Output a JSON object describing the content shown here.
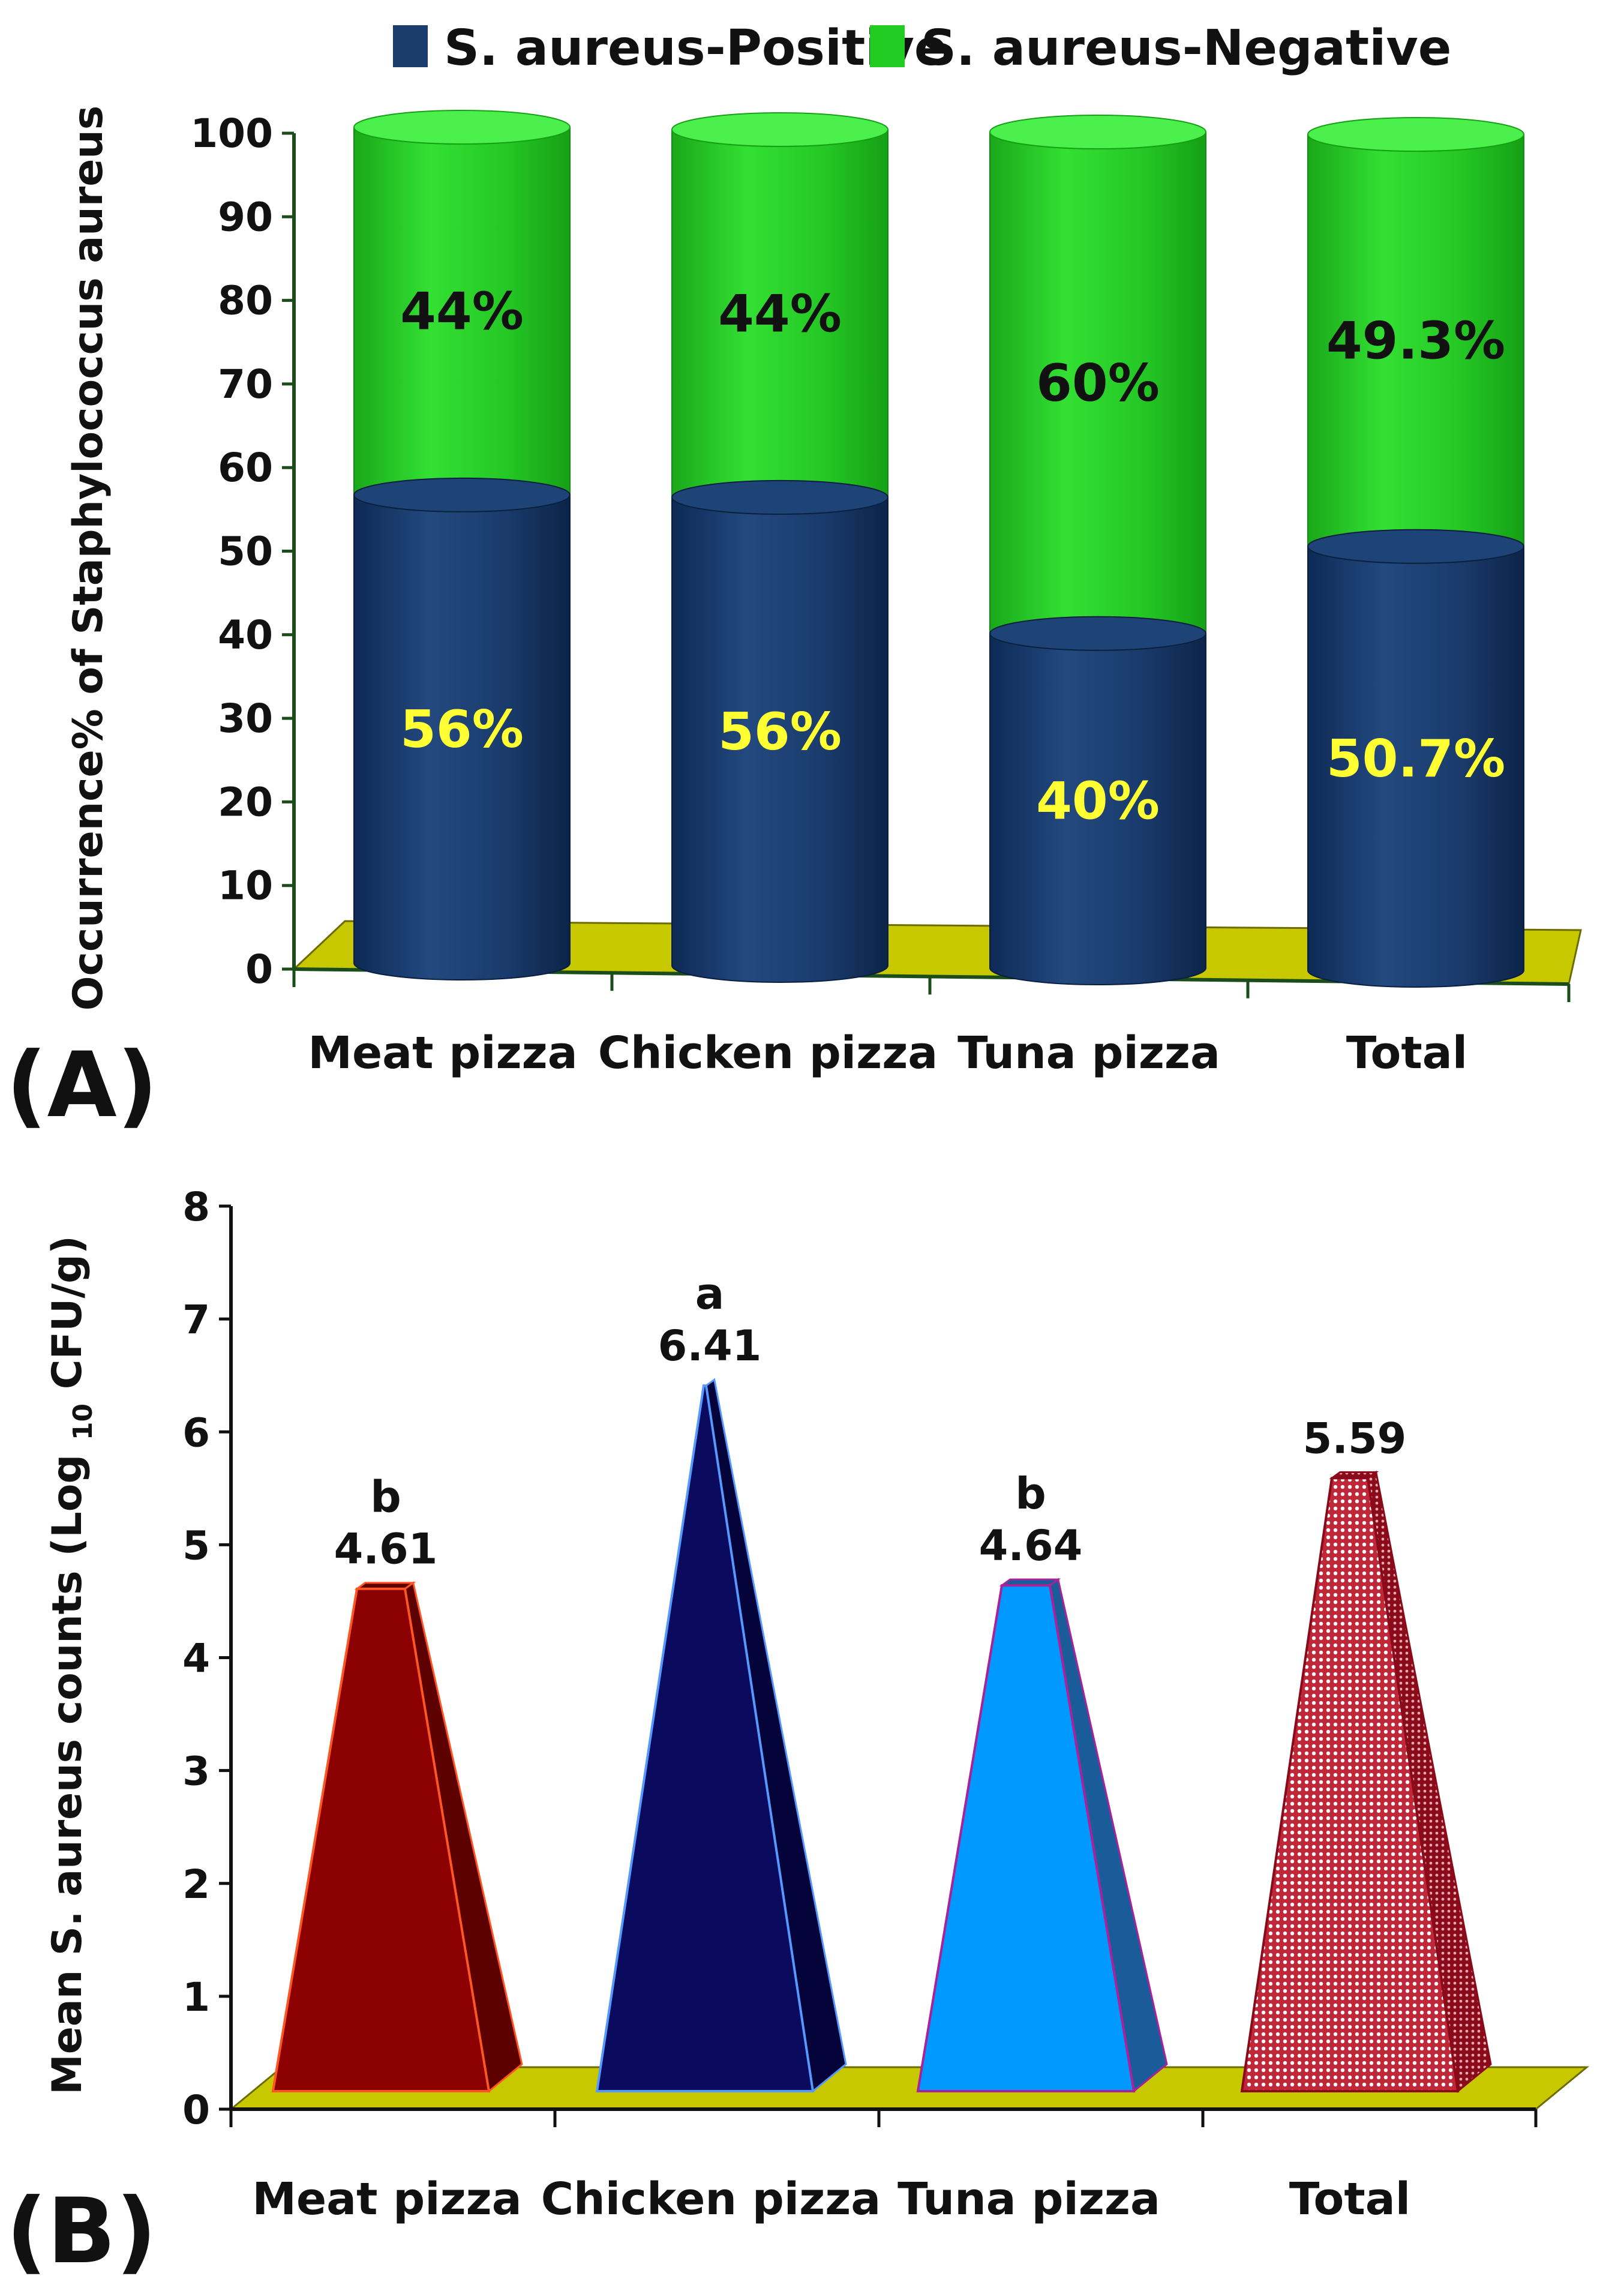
{
  "chart_data": [
    {
      "panel": "(A)",
      "type": "bar",
      "stacked": true,
      "style": "3d-cylinder",
      "ylabel": "Occurrence% of Staphylococcus aureus",
      "xlabel": "",
      "ylim": [
        0,
        100
      ],
      "yticks": [
        0,
        10,
        20,
        30,
        40,
        50,
        60,
        70,
        80,
        90,
        100
      ],
      "categories": [
        "Meat pizza",
        "Chicken pizza",
        "Tuna pizza",
        "Total"
      ],
      "legend_position": "top",
      "series": [
        {
          "name": "S. aureus-Positive",
          "color": "#1b3d6e",
          "values": [
            56,
            56,
            40,
            50.7
          ],
          "labels": [
            "56%",
            "56%",
            "40%",
            "50.7%"
          ]
        },
        {
          "name": "S. aureus-Negative",
          "color": "#22cc22",
          "values": [
            44,
            44,
            60,
            49.3
          ],
          "labels": [
            "44%",
            "44%",
            "60%",
            "49.3%"
          ]
        }
      ]
    },
    {
      "panel": "(B)",
      "type": "bar",
      "style": "3d-pyramid",
      "ylabel": "Mean S. aureus counts (Log",
      "ylabel_subscript": "10",
      "ylabel_suffix": " CFU/g)",
      "xlabel": "",
      "ylim": [
        0,
        8
      ],
      "yticks": [
        0,
        1,
        2,
        3,
        4,
        5,
        6,
        7,
        8
      ],
      "categories": [
        "Meat pizza",
        "Chicken pizza",
        "Tuna pizza",
        "Total"
      ],
      "values": [
        4.61,
        6.41,
        4.64,
        5.59
      ],
      "value_labels": [
        "4.61",
        "6.41",
        "4.64",
        "5.59"
      ],
      "significance": [
        "b",
        "a",
        "b",
        ""
      ],
      "colors": [
        "#8b0000",
        "#0a0a5e",
        "#0099ff",
        "#c0283a"
      ],
      "edge_colors": [
        "#ff5522",
        "#5599ff",
        "#aa2299",
        "#8b0a1a"
      ]
    }
  ]
}
